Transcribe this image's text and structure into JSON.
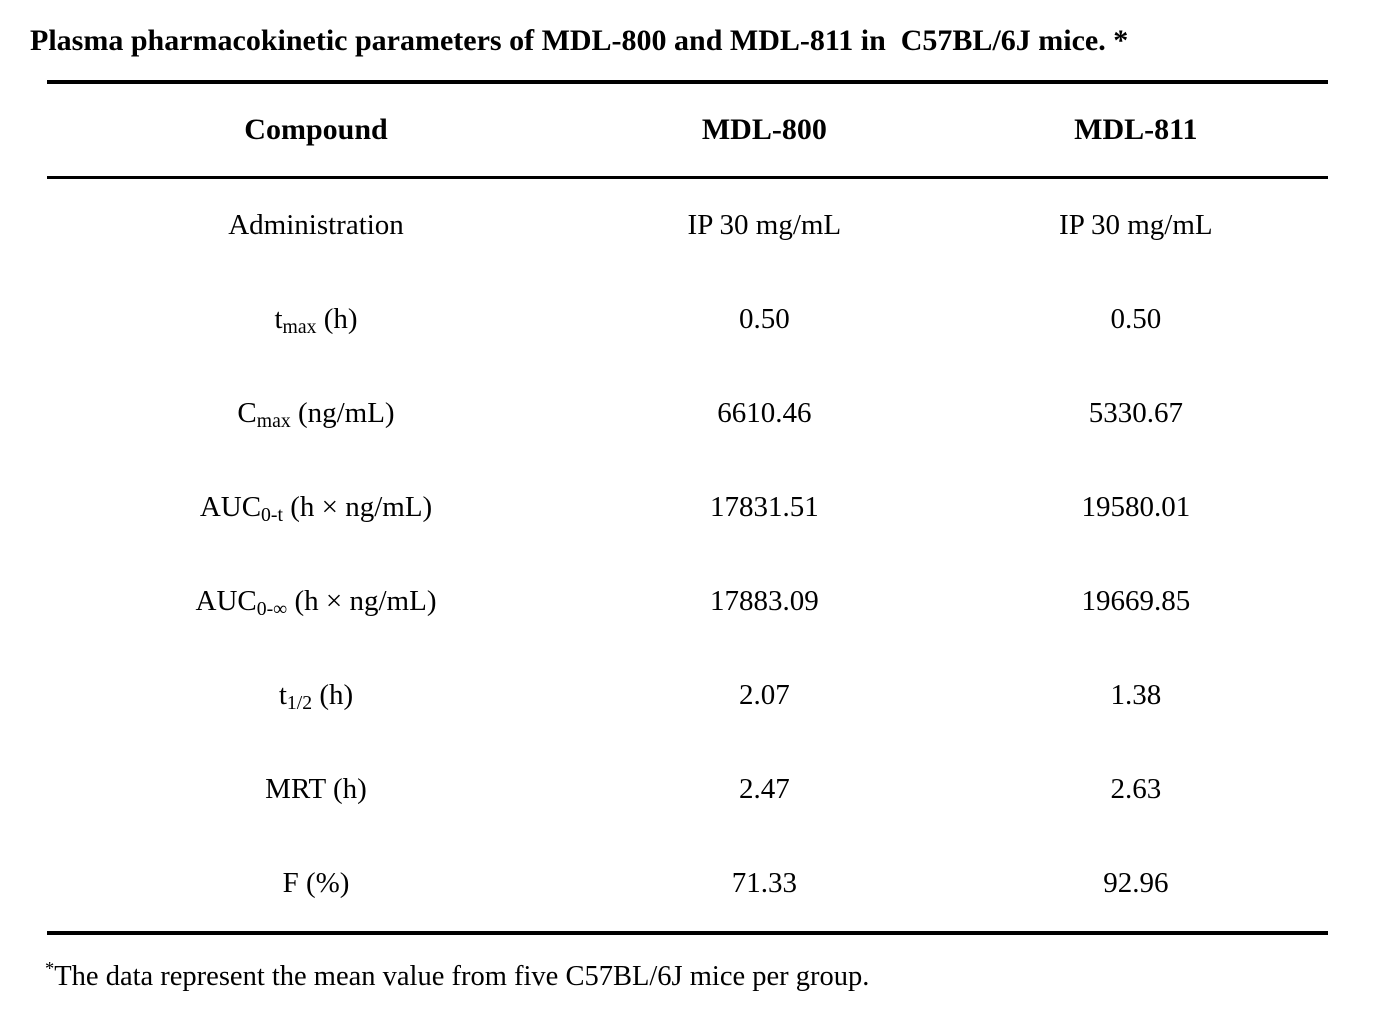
{
  "title": "Plasma pharmacokinetic parameters of MDL-800 and MDL-811 in  C57BL/6J mice. *",
  "table": {
    "header": {
      "col1": "Compound",
      "col2": "MDL-800",
      "col3": "MDL-811"
    },
    "rows": [
      {
        "label": {
          "pre": "Administration",
          "sub": "",
          "post": ""
        },
        "mdl800": "IP 30 mg/mL",
        "mdl811": "IP 30 mg/mL"
      },
      {
        "label": {
          "pre": "t",
          "sub": "max",
          "post": " (h)"
        },
        "mdl800": "0.50",
        "mdl811": "0.50"
      },
      {
        "label": {
          "pre": "C",
          "sub": "max",
          "post": " (ng/mL)"
        },
        "mdl800": "6610.46",
        "mdl811": "5330.67"
      },
      {
        "label": {
          "pre": "AUC",
          "sub": "0-t",
          "post": " (h × ng/mL)"
        },
        "mdl800": "17831.51",
        "mdl811": "19580.01"
      },
      {
        "label": {
          "pre": "AUC",
          "sub": "0-∞",
          "post": " (h × ng/mL)"
        },
        "mdl800": "17883.09",
        "mdl811": "19669.85"
      },
      {
        "label": {
          "pre": "t",
          "sub": "1/2",
          "post": " (h)"
        },
        "mdl800": "2.07",
        "mdl811": "1.38"
      },
      {
        "label": {
          "pre": "MRT (h)",
          "sub": "",
          "post": ""
        },
        "mdl800": "2.47",
        "mdl811": "2.63"
      },
      {
        "label": {
          "pre": "F (%)",
          "sub": "",
          "post": ""
        },
        "mdl800": "71.33",
        "mdl811": "92.96"
      }
    ]
  },
  "footnote": {
    "sup": "*",
    "text": "The data represent the mean value from five C57BL/6J mice per group."
  },
  "colors": {
    "text": "#000000",
    "background": "#ffffff",
    "rule": "#000000"
  }
}
